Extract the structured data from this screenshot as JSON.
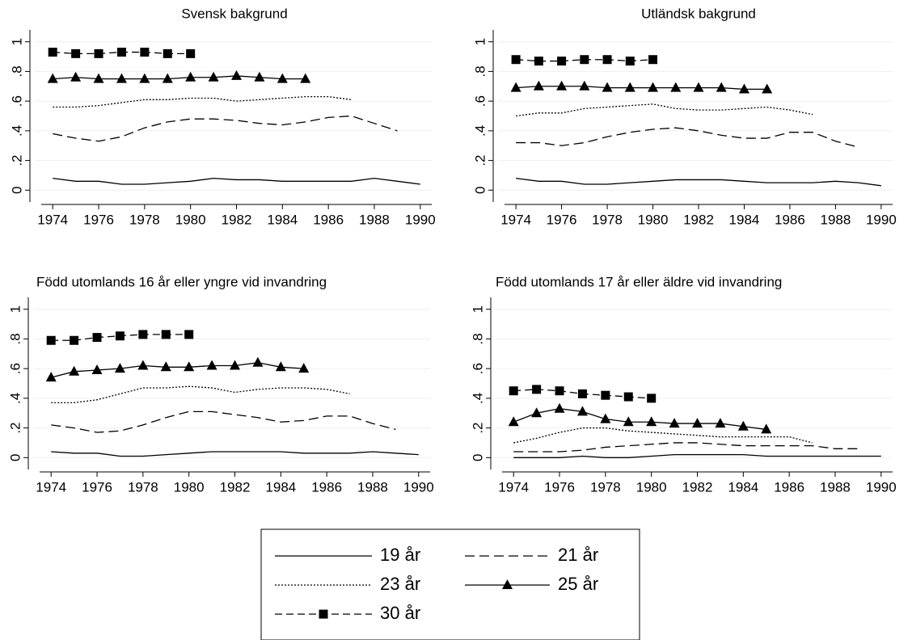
{
  "chart_data": [
    {
      "type": "line",
      "title": "Svensk bakgrund",
      "x": [
        1974,
        1975,
        1976,
        1977,
        1978,
        1979,
        1980,
        1981,
        1982,
        1983,
        1984,
        1985,
        1986,
        1987,
        1988,
        1989,
        1990
      ],
      "xlim": [
        1973.5,
        1990.5
      ],
      "xticks": [
        1974,
        1976,
        1978,
        1980,
        1982,
        1984,
        1986,
        1988,
        1990
      ],
      "ylim": [
        -0.08,
        1.08
      ],
      "yticks": [
        0,
        {
          "value": 0.2,
          "label": ".2"
        },
        {
          "value": 0.4,
          "label": ".4"
        },
        {
          "value": 0.6,
          "label": ".6"
        },
        {
          "value": 0.8,
          "label": ".8"
        },
        1
      ],
      "grid": true,
      "series": [
        {
          "name": "19 år",
          "color": "#000000",
          "values": [
            0.08,
            0.06,
            0.06,
            0.04,
            0.04,
            0.05,
            0.06,
            0.08,
            0.07,
            0.07,
            0.06,
            0.06,
            0.06,
            0.06,
            0.08,
            0.06,
            0.04
          ]
        },
        {
          "name": "21 år",
          "color": "#000000",
          "values": [
            0.38,
            0.35,
            0.33,
            0.36,
            0.42,
            0.46,
            0.48,
            0.48,
            0.47,
            0.45,
            0.44,
            0.46,
            0.49,
            0.5,
            0.45,
            0.4,
            null
          ]
        },
        {
          "name": "23 år",
          "color": "#000000",
          "values": [
            0.56,
            0.56,
            0.57,
            0.59,
            0.61,
            0.61,
            0.62,
            0.62,
            0.6,
            0.61,
            0.62,
            0.63,
            0.63,
            0.61,
            null,
            null,
            null
          ]
        },
        {
          "name": "25 år",
          "color": "#000000",
          "values": [
            0.75,
            0.76,
            0.75,
            0.75,
            0.75,
            0.75,
            0.76,
            0.76,
            0.77,
            0.76,
            0.75,
            0.75,
            null,
            null,
            null,
            null,
            null
          ]
        },
        {
          "name": "30 år",
          "color": "#000000",
          "values": [
            0.93,
            0.92,
            0.92,
            0.93,
            0.93,
            0.92,
            0.92,
            null,
            null,
            null,
            null,
            null,
            null,
            null,
            null,
            null,
            null
          ]
        }
      ]
    },
    {
      "type": "line",
      "title": "Utländsk bakgrund",
      "x": [
        1974,
        1975,
        1976,
        1977,
        1978,
        1979,
        1980,
        1981,
        1982,
        1983,
        1984,
        1985,
        1986,
        1987,
        1988,
        1989,
        1990
      ],
      "xlim": [
        1973.5,
        1990.5
      ],
      "xticks": [
        1974,
        1976,
        1978,
        1980,
        1982,
        1984,
        1986,
        1988,
        1990
      ],
      "ylim": [
        -0.08,
        1.08
      ],
      "yticks": [
        0,
        {
          "value": 0.2,
          "label": ".2"
        },
        {
          "value": 0.4,
          "label": ".4"
        },
        {
          "value": 0.6,
          "label": ".6"
        },
        {
          "value": 0.8,
          "label": ".8"
        },
        1
      ],
      "grid": true,
      "series": [
        {
          "name": "19 år",
          "color": "#000000",
          "values": [
            0.08,
            0.06,
            0.06,
            0.04,
            0.04,
            0.05,
            0.06,
            0.07,
            0.07,
            0.07,
            0.06,
            0.05,
            0.05,
            0.05,
            0.06,
            0.05,
            0.03
          ]
        },
        {
          "name": "21 år",
          "color": "#000000",
          "values": [
            0.32,
            0.32,
            0.3,
            0.32,
            0.36,
            0.39,
            0.41,
            0.42,
            0.4,
            0.37,
            0.35,
            0.35,
            0.39,
            0.39,
            0.33,
            0.29,
            null
          ]
        },
        {
          "name": "23 år",
          "color": "#000000",
          "values": [
            0.5,
            0.52,
            0.52,
            0.55,
            0.56,
            0.57,
            0.58,
            0.55,
            0.54,
            0.54,
            0.55,
            0.56,
            0.54,
            0.51,
            null,
            null,
            null
          ]
        },
        {
          "name": "25 år",
          "color": "#000000",
          "values": [
            0.69,
            0.7,
            0.7,
            0.7,
            0.69,
            0.69,
            0.69,
            0.69,
            0.69,
            0.69,
            0.68,
            0.68,
            null,
            null,
            null,
            null,
            null
          ]
        },
        {
          "name": "30 år",
          "color": "#000000",
          "values": [
            0.88,
            0.87,
            0.87,
            0.88,
            0.88,
            0.87,
            0.88,
            null,
            null,
            null,
            null,
            null,
            null,
            null,
            null,
            null,
            null
          ]
        }
      ]
    },
    {
      "type": "line",
      "title": "Född utomlands 16 år eller yngre vid invandring",
      "x": [
        1974,
        1975,
        1976,
        1977,
        1978,
        1979,
        1980,
        1981,
        1982,
        1983,
        1984,
        1985,
        1986,
        1987,
        1988,
        1989,
        1990
      ],
      "xlim": [
        1973.5,
        1990.5
      ],
      "xticks": [
        1974,
        1976,
        1978,
        1980,
        1982,
        1984,
        1986,
        1988,
        1990
      ],
      "ylim": [
        -0.08,
        1.08
      ],
      "yticks": [
        0,
        {
          "value": 0.2,
          "label": ".2"
        },
        {
          "value": 0.4,
          "label": ".4"
        },
        {
          "value": 0.6,
          "label": ".6"
        },
        {
          "value": 0.8,
          "label": ".8"
        },
        1
      ],
      "grid": true,
      "series": [
        {
          "name": "19 år",
          "color": "#000000",
          "values": [
            0.04,
            0.03,
            0.03,
            0.01,
            0.01,
            0.02,
            0.03,
            0.04,
            0.04,
            0.04,
            0.04,
            0.03,
            0.03,
            0.03,
            0.04,
            0.03,
            0.02
          ]
        },
        {
          "name": "21 år",
          "color": "#000000",
          "values": [
            0.22,
            0.2,
            0.17,
            0.18,
            0.22,
            0.27,
            0.31,
            0.31,
            0.29,
            0.27,
            0.24,
            0.25,
            0.28,
            0.28,
            0.23,
            0.19,
            null
          ]
        },
        {
          "name": "23 år",
          "color": "#000000",
          "values": [
            0.37,
            0.37,
            0.39,
            0.43,
            0.47,
            0.47,
            0.48,
            0.47,
            0.44,
            0.46,
            0.47,
            0.47,
            0.46,
            0.43,
            null,
            null,
            null
          ]
        },
        {
          "name": "25 år",
          "color": "#000000",
          "values": [
            0.54,
            0.58,
            0.59,
            0.6,
            0.62,
            0.61,
            0.61,
            0.62,
            0.62,
            0.64,
            0.61,
            0.6,
            null,
            null,
            null,
            null,
            null
          ]
        },
        {
          "name": "30 år",
          "color": "#000000",
          "values": [
            0.79,
            0.79,
            0.81,
            0.82,
            0.83,
            0.83,
            0.83,
            null,
            null,
            null,
            null,
            null,
            null,
            null,
            null,
            null,
            null
          ]
        }
      ]
    },
    {
      "type": "line",
      "title": "Född utomlands 17 år eller äldre vid invandring",
      "x": [
        1974,
        1975,
        1976,
        1977,
        1978,
        1979,
        1980,
        1981,
        1982,
        1983,
        1984,
        1985,
        1986,
        1987,
        1988,
        1989,
        1990
      ],
      "xlim": [
        1973.5,
        1990.5
      ],
      "xticks": [
        1974,
        1976,
        1978,
        1980,
        1982,
        1984,
        1986,
        1988,
        1990
      ],
      "ylim": [
        -0.08,
        1.08
      ],
      "yticks": [
        0,
        {
          "value": 0.2,
          "label": ".2"
        },
        {
          "value": 0.4,
          "label": ".4"
        },
        {
          "value": 0.6,
          "label": ".6"
        },
        {
          "value": 0.8,
          "label": ".8"
        },
        1
      ],
      "grid": true,
      "series": [
        {
          "name": "19 år",
          "color": "#000000",
          "values": [
            0,
            0,
            0,
            0.01,
            0,
            0,
            0.01,
            0.02,
            0.02,
            0.02,
            0.02,
            0.01,
            0.01,
            0.01,
            0.01,
            0.01,
            0.01
          ]
        },
        {
          "name": "21 år",
          "color": "#000000",
          "values": [
            0.04,
            0.04,
            0.04,
            0.05,
            0.07,
            0.08,
            0.09,
            0.1,
            0.1,
            0.09,
            0.08,
            0.08,
            0.08,
            0.08,
            0.06,
            0.06,
            null
          ]
        },
        {
          "name": "23 år",
          "color": "#000000",
          "values": [
            0.1,
            0.13,
            0.17,
            0.2,
            0.2,
            0.18,
            0.17,
            0.16,
            0.15,
            0.14,
            0.14,
            0.14,
            0.14,
            0.1,
            null,
            null,
            null
          ]
        },
        {
          "name": "25 år",
          "color": "#000000",
          "values": [
            0.24,
            0.3,
            0.33,
            0.31,
            0.26,
            0.24,
            0.24,
            0.23,
            0.23,
            0.23,
            0.21,
            0.19,
            null,
            null,
            null,
            null,
            null
          ]
        },
        {
          "name": "30 år",
          "color": "#000000",
          "values": [
            0.45,
            0.46,
            0.45,
            0.43,
            0.42,
            0.41,
            0.4,
            null,
            null,
            null,
            null,
            null,
            null,
            null,
            null,
            null,
            null
          ]
        }
      ]
    }
  ]
}
